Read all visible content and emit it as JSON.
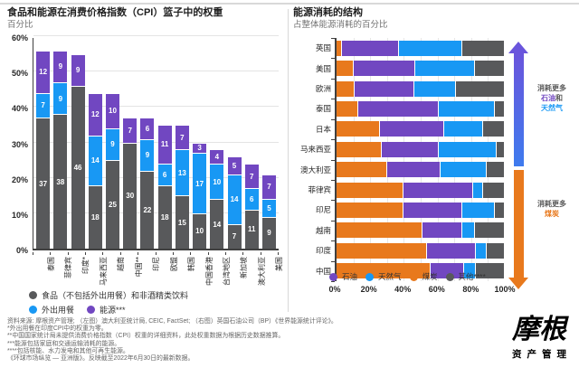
{
  "chart_data": [
    {
      "type": "bar",
      "orientation": "vertical",
      "stacked": true,
      "title": "食品和能源在消费价格指数（CPI）篮子中的权重",
      "subtitle": "百分比",
      "ylim": [
        0,
        60
      ],
      "y_tick_labels": [
        "0%",
        "10%",
        "20%",
        "30%",
        "40%",
        "50%",
        "60%"
      ],
      "grid": true,
      "legend_position": "bottom",
      "categories": [
        "泰国",
        "菲律宾",
        "印度*",
        "马来西亚",
        "越南",
        "中国**",
        "印尼",
        "欧盟",
        "韩国",
        "中国香港",
        "台湾地区",
        "新加坡",
        "澳大利亚",
        "美国"
      ],
      "series": [
        {
          "name": "食品（不包括外出用餐）和非酒精类饮料",
          "color": "#58595B",
          "values": [
            37,
            38,
            46,
            18,
            25,
            30,
            22,
            18,
            15,
            10,
            14,
            7,
            11,
            9
          ]
        },
        {
          "name": "外出用餐",
          "color": "#1898F4",
          "values": [
            7,
            9,
            0,
            14,
            9,
            0,
            9,
            6,
            13,
            17,
            10,
            14,
            6,
            5
          ]
        },
        {
          "name": "能源***",
          "color": "#7147C1",
          "values": [
            12,
            9,
            9,
            12,
            10,
            7,
            6,
            11,
            7,
            3,
            4,
            5,
            7,
            7
          ]
        }
      ]
    },
    {
      "type": "bar",
      "orientation": "horizontal",
      "stacked": true,
      "title": "能源消耗的结构",
      "subtitle": "占整体能源消耗的百分比",
      "xlim": [
        0,
        100
      ],
      "x_tick_values": [
        0,
        20,
        40,
        60,
        80,
        100
      ],
      "x_tick_labels": [
        "0%",
        "20%",
        "40%",
        "60%",
        "80%",
        "100%"
      ],
      "grid": true,
      "legend_position": "bottom",
      "legend_labels": [
        "石油",
        "天然气",
        "煤炭",
        "其他****"
      ],
      "categories": [
        "英国",
        "美国",
        "欧洲",
        "泰国",
        "日本",
        "马来西亚",
        "澳大利亚",
        "菲律宾",
        "印尼",
        "越南",
        "印度",
        "中国"
      ],
      "series": [
        {
          "name": "煤炭",
          "color": "#E8791D",
          "values": [
            3,
            10,
            11,
            13,
            26,
            27,
            30,
            40,
            40,
            51,
            54,
            56
          ]
        },
        {
          "name": "石油",
          "color": "#7147C1",
          "values": [
            34,
            37,
            35,
            48,
            38,
            34,
            32,
            41,
            35,
            24,
            29,
            20
          ]
        },
        {
          "name": "天然气",
          "color": "#1898F4",
          "values": [
            38,
            35,
            25,
            33,
            23,
            34,
            27,
            6,
            19,
            7,
            6,
            7
          ]
        },
        {
          "name": "其他****",
          "color": "#58595B",
          "values": [
            25,
            18,
            29,
            6,
            13,
            5,
            11,
            13,
            6,
            18,
            11,
            17
          ]
        }
      ]
    }
  ],
  "right_annotations": {
    "up": {
      "prefix": "消耗更多",
      "oil": "石油",
      "conj": "和",
      "gas": "天然气"
    },
    "down": {
      "prefix": "消耗更多",
      "coal": "煤炭"
    }
  },
  "colors": {
    "oil_purple": "#7147C1",
    "gas_blue": "#1898F4",
    "coal_orange": "#E8791D",
    "other_gray": "#58595B",
    "arrow_up_gradient_top": "#6A55DC",
    "arrow_up_gradient_bottom": "#3E7BEE",
    "arrow_down_orange": "#E8791D",
    "axis": "#404040"
  },
  "footnotes": [
    "资料来源: 摩根资产管理; （左图）澳大利亚统计局, CEIC, FactSet; （右图）英国石油公司（BP）《世界能源统计评论》。",
    "*外出用餐在印度CPI中的权重为零。",
    "**中国国家统计局未提供消费价格指数（CPI）权重的详细资料，此处权重数据为根据历史数据推算。",
    "***能源包括家庭和交通运输消耗的能源。",
    "****包括核能、水力发电和其他可再生能源。",
    "《环球市场纵览 — 亚洲版》。反映截至2022年6月30日的最新数据。"
  ],
  "logo": {
    "main": "摩根",
    "sub": "资产管理"
  }
}
